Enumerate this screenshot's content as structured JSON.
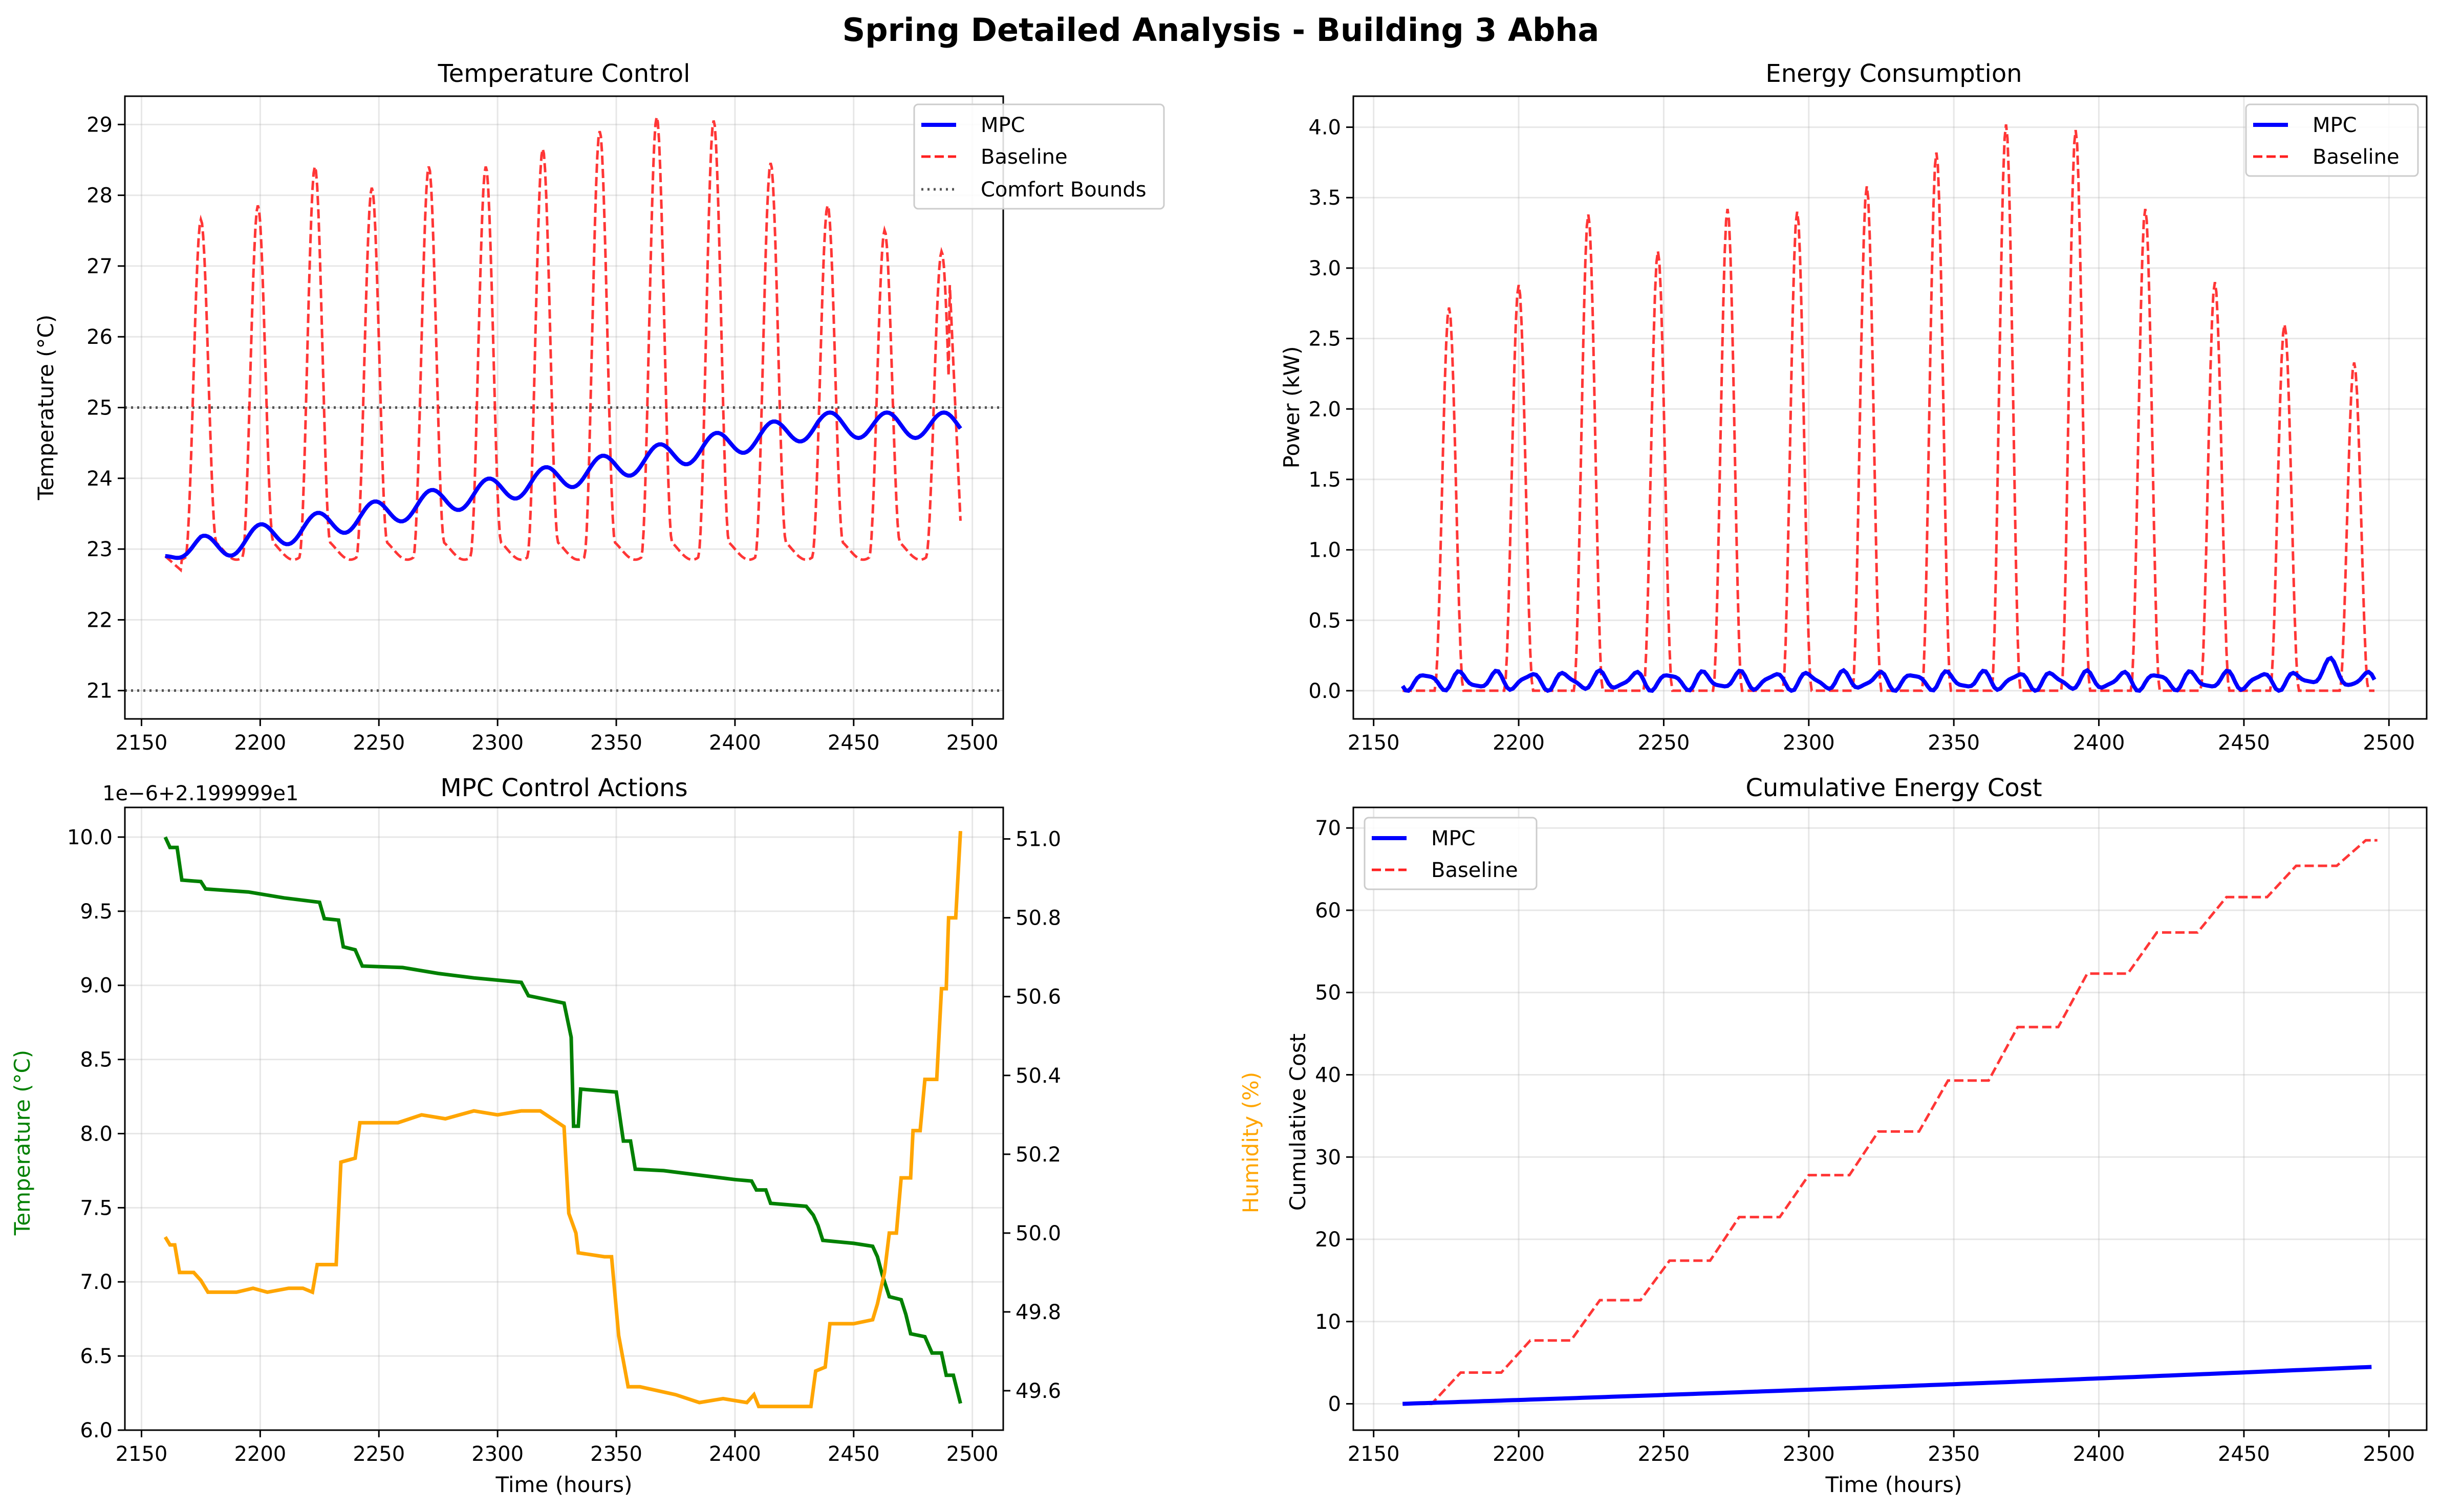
{
  "figure": {
    "suptitle": "Spring Detailed Analysis - Building 3 Abha"
  },
  "colors": {
    "mpc": "#0000ff",
    "baseline": "#ff2020",
    "bounds": "#555555",
    "temp_action": "#008000",
    "humidity": "#ffa500"
  },
  "chart_data": [
    {
      "id": "temperature",
      "type": "line",
      "title": "Temperature Control",
      "xlabel": "",
      "ylabel": "Temperature (°C)",
      "xlim": [
        2143,
        2513
      ],
      "ylim": [
        20.6,
        29.4
      ],
      "xticks": [
        2150,
        2200,
        2250,
        2300,
        2350,
        2400,
        2450,
        2500
      ],
      "yticks": [
        21,
        22,
        23,
        24,
        25,
        26,
        27,
        28,
        29
      ],
      "grid": true,
      "legend": "top-right",
      "legend_entries": [
        "MPC",
        "Baseline",
        "Comfort Bounds"
      ],
      "hlines": [
        21,
        25
      ],
      "mpc": {
        "name": "MPC",
        "start_value": 22.9,
        "end_value": 24.75,
        "oscillation_amplitude": 0.18,
        "period_hours": 24
      },
      "baseline": {
        "name": "Baseline",
        "day_peaks": [
          [
            2175,
            27.55
          ],
          [
            2199,
            27.75
          ],
          [
            2223,
            28.3
          ],
          [
            2247,
            28.0
          ],
          [
            2271,
            28.3
          ],
          [
            2295,
            28.3
          ],
          [
            2319,
            28.55
          ],
          [
            2343,
            28.8
          ],
          [
            2367,
            29.0
          ],
          [
            2391,
            28.95
          ],
          [
            2415,
            28.35
          ],
          [
            2439,
            27.75
          ],
          [
            2463,
            27.4
          ],
          [
            2487,
            27.1
          ]
        ],
        "night_minimum": 23.0
      }
    },
    {
      "id": "energy",
      "type": "line",
      "title": "Energy Consumption",
      "xlabel": "",
      "ylabel": "Power (kW)",
      "xlim": [
        2143,
        2513
      ],
      "ylim": [
        -0.2,
        4.22
      ],
      "xticks": [
        2150,
        2200,
        2250,
        2300,
        2350,
        2400,
        2450,
        2500
      ],
      "yticks": [
        "0.0",
        "0.5",
        "1.0",
        "1.5",
        "2.0",
        "2.5",
        "3.0",
        "3.5",
        "4.0"
      ],
      "grid": true,
      "legend": "top-right",
      "legend_entries": [
        "MPC",
        "Baseline"
      ],
      "mpc": {
        "name": "MPC",
        "typical_range": [
          0.0,
          0.2
        ]
      },
      "baseline": {
        "name": "Baseline",
        "day_peaks": [
          [
            2176,
            2.72
          ],
          [
            2200,
            2.88
          ],
          [
            2224,
            3.38
          ],
          [
            2248,
            3.12
          ],
          [
            2272,
            3.42
          ],
          [
            2296,
            3.4
          ],
          [
            2320,
            3.58
          ],
          [
            2344,
            3.82
          ],
          [
            2368,
            4.02
          ],
          [
            2392,
            3.98
          ],
          [
            2416,
            3.42
          ],
          [
            2440,
            2.9
          ],
          [
            2464,
            2.6
          ],
          [
            2488,
            2.33
          ]
        ]
      }
    },
    {
      "id": "control",
      "type": "line",
      "title": "MPC Control Actions",
      "xlabel": "Time (hours)",
      "ylabel": "Temperature (°C)",
      "ylabel_right": "Humidity (%)",
      "offset_label": "1e−6+2.199999e1",
      "xlim": [
        2143,
        2513
      ],
      "ylim": [
        6.0,
        10.2
      ],
      "ylim_right": [
        49.5,
        51.08
      ],
      "xticks": [
        2150,
        2200,
        2250,
        2300,
        2350,
        2400,
        2450,
        2500
      ],
      "yticks": [
        "6.0",
        "6.5",
        "7.0",
        "7.5",
        "8.0",
        "8.5",
        "9.0",
        "9.5",
        "10.0"
      ],
      "yticks_right": [
        "49.6",
        "49.8",
        "50.0",
        "50.2",
        "50.4",
        "50.6",
        "50.8",
        "51.0"
      ],
      "grid": true,
      "series": [
        {
          "name": "Temperature",
          "axis": "left",
          "points": [
            [
              2160,
              10.0
            ],
            [
              2162,
              9.93
            ],
            [
              2165,
              9.93
            ],
            [
              2167,
              9.71
            ],
            [
              2175,
              9.7
            ],
            [
              2177,
              9.65
            ],
            [
              2195,
              9.63
            ],
            [
              2210,
              9.59
            ],
            [
              2225,
              9.56
            ],
            [
              2227,
              9.45
            ],
            [
              2233,
              9.44
            ],
            [
              2235,
              9.26
            ],
            [
              2240,
              9.24
            ],
            [
              2243,
              9.13
            ],
            [
              2260,
              9.12
            ],
            [
              2275,
              9.08
            ],
            [
              2290,
              9.05
            ],
            [
              2310,
              9.02
            ],
            [
              2313,
              8.93
            ],
            [
              2328,
              8.88
            ],
            [
              2331,
              8.65
            ],
            [
              2332,
              8.05
            ],
            [
              2334,
              8.05
            ],
            [
              2335,
              8.3
            ],
            [
              2350,
              8.28
            ],
            [
              2353,
              7.95
            ],
            [
              2356,
              7.95
            ],
            [
              2358,
              7.76
            ],
            [
              2370,
              7.75
            ],
            [
              2385,
              7.72
            ],
            [
              2400,
              7.69
            ],
            [
              2407,
              7.68
            ],
            [
              2409,
              7.62
            ],
            [
              2413,
              7.62
            ],
            [
              2415,
              7.53
            ],
            [
              2430,
              7.51
            ],
            [
              2433,
              7.45
            ],
            [
              2435,
              7.38
            ],
            [
              2437,
              7.28
            ],
            [
              2450,
              7.26
            ],
            [
              2458,
              7.24
            ],
            [
              2460,
              7.17
            ],
            [
              2462,
              7.05
            ],
            [
              2465,
              6.9
            ],
            [
              2470,
              6.88
            ],
            [
              2472,
              6.78
            ],
            [
              2474,
              6.65
            ],
            [
              2480,
              6.63
            ],
            [
              2483,
              6.52
            ],
            [
              2487,
              6.52
            ],
            [
              2489,
              6.37
            ],
            [
              2492,
              6.37
            ],
            [
              2495,
              6.18
            ]
          ]
        },
        {
          "name": "Humidity",
          "axis": "right",
          "points": [
            [
              2160,
              49.99
            ],
            [
              2162,
              49.97
            ],
            [
              2164,
              49.97
            ],
            [
              2166,
              49.9
            ],
            [
              2172,
              49.9
            ],
            [
              2175,
              49.88
            ],
            [
              2178,
              49.85
            ],
            [
              2190,
              49.85
            ],
            [
              2197,
              49.86
            ],
            [
              2203,
              49.85
            ],
            [
              2212,
              49.86
            ],
            [
              2218,
              49.86
            ],
            [
              2222,
              49.85
            ],
            [
              2224,
              49.92
            ],
            [
              2232,
              49.92
            ],
            [
              2234,
              50.18
            ],
            [
              2240,
              50.19
            ],
            [
              2242,
              50.28
            ],
            [
              2258,
              50.28
            ],
            [
              2268,
              50.3
            ],
            [
              2278,
              50.29
            ],
            [
              2290,
              50.31
            ],
            [
              2300,
              50.3
            ],
            [
              2310,
              50.31
            ],
            [
              2318,
              50.31
            ],
            [
              2328,
              50.27
            ],
            [
              2330,
              50.05
            ],
            [
              2333,
              50.0
            ],
            [
              2334,
              49.95
            ],
            [
              2345,
              49.94
            ],
            [
              2348,
              49.94
            ],
            [
              2351,
              49.74
            ],
            [
              2355,
              49.61
            ],
            [
              2360,
              49.61
            ],
            [
              2375,
              49.59
            ],
            [
              2385,
              49.57
            ],
            [
              2395,
              49.58
            ],
            [
              2405,
              49.57
            ],
            [
              2408,
              49.59
            ],
            [
              2410,
              49.56
            ],
            [
              2420,
              49.56
            ],
            [
              2432,
              49.56
            ],
            [
              2434,
              49.65
            ],
            [
              2438,
              49.66
            ],
            [
              2440,
              49.77
            ],
            [
              2450,
              49.77
            ],
            [
              2458,
              49.78
            ],
            [
              2460,
              49.82
            ],
            [
              2463,
              49.9
            ],
            [
              2465,
              50.0
            ],
            [
              2468,
              50.0
            ],
            [
              2470,
              50.14
            ],
            [
              2474,
              50.14
            ],
            [
              2475,
              50.26
            ],
            [
              2478,
              50.26
            ],
            [
              2480,
              50.39
            ],
            [
              2485,
              50.39
            ],
            [
              2487,
              50.62
            ],
            [
              2489,
              50.62
            ],
            [
              2490,
              50.8
            ],
            [
              2493,
              50.8
            ],
            [
              2495,
              51.02
            ]
          ]
        }
      ]
    },
    {
      "id": "cost",
      "type": "line",
      "title": "Cumulative Energy Cost",
      "xlabel": "Time (hours)",
      "ylabel": "Cumulative Cost",
      "xlim": [
        2143,
        2513
      ],
      "ylim": [
        -3.2,
        72.5
      ],
      "xticks": [
        2150,
        2200,
        2250,
        2300,
        2350,
        2400,
        2450,
        2500
      ],
      "yticks": [
        0,
        10,
        20,
        30,
        40,
        50,
        60,
        70
      ],
      "grid": true,
      "legend": "top-left",
      "legend_entries": [
        "MPC",
        "Baseline"
      ],
      "mpc": {
        "name": "MPC",
        "start_value": 0,
        "end_value": 4.5
      },
      "baseline": {
        "name": "Baseline",
        "day_levels": [
          [
            2160,
            0.0
          ],
          [
            2184,
            3.8
          ],
          [
            2208,
            7.7
          ],
          [
            2232,
            12.6
          ],
          [
            2256,
            17.4
          ],
          [
            2280,
            22.7
          ],
          [
            2304,
            27.8
          ],
          [
            2328,
            33.1
          ],
          [
            2352,
            39.3
          ],
          [
            2376,
            45.8
          ],
          [
            2400,
            52.3
          ],
          [
            2424,
            57.3
          ],
          [
            2448,
            61.6
          ],
          [
            2472,
            65.4
          ],
          [
            2496,
            68.5
          ]
        ]
      }
    }
  ]
}
